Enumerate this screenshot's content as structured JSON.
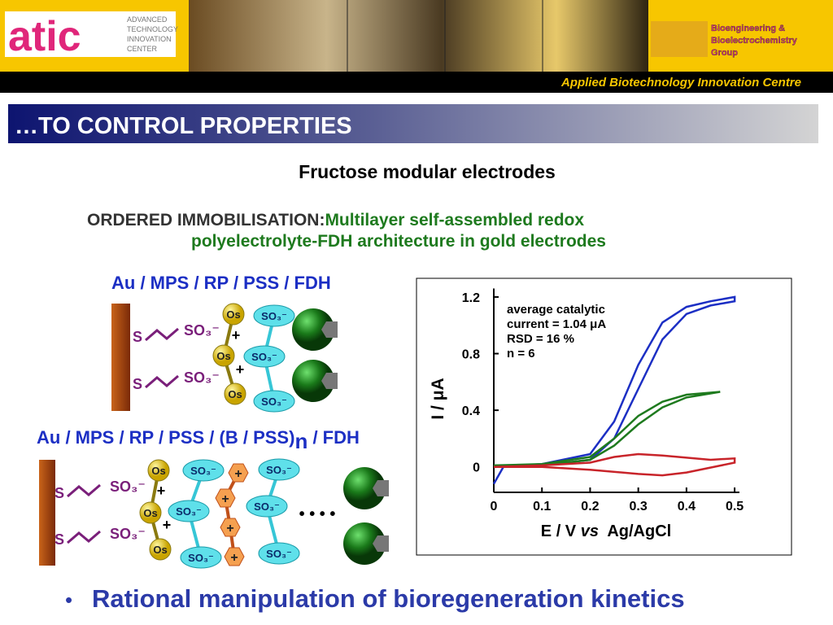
{
  "header": {
    "logo": "atic",
    "logo_text": [
      "ADVANCED",
      "TECHNOLOGY",
      "INNOVATION",
      "CENTER"
    ],
    "group_logo": [
      "Bioengineering &",
      "Bioelectrochemistry",
      "Group"
    ],
    "banner": "Applied Biotechnology Innovation Centre"
  },
  "section_title": "…TO CONTROL PROPERTIES",
  "subtitle": "Fructose modular electrodes",
  "heading": {
    "lead": "ORDERED IMMOBILISATION:",
    "lines": [
      "Multilayer self-assembled redox",
      "polyelectrolyte-FDH architecture in gold electrodes"
    ]
  },
  "diagrams": [
    {
      "label": [
        "Au / MPS / RP / PSS / FDH"
      ],
      "s": [
        "S",
        "S"
      ],
      "so3": [
        "SO₃⁻",
        "SO₃⁻"
      ],
      "os": [
        "Os",
        "Os",
        "Os"
      ],
      "plus": [
        "+",
        "+"
      ],
      "sulfonate": [
        "SO₃⁻",
        "SO₃⁻",
        "SO₃⁻"
      ]
    },
    {
      "label": [
        "Au / MPS / RP / PSS / (B / PSS)",
        "n",
        " / FDH"
      ],
      "s": [
        "S",
        "S"
      ],
      "so3": [
        "SO₃⁻",
        "SO₃⁻"
      ],
      "os": [
        "Os",
        "Os",
        "Os"
      ],
      "plus": [
        "+",
        "+"
      ],
      "sulfonate": [
        "SO₃⁻",
        "SO₃⁻",
        "SO₃⁻",
        "SO₃⁻",
        "SO₃⁻",
        "SO₃⁻"
      ],
      "cation": [
        "+",
        "+",
        "+",
        "+"
      ],
      "ellipsis": "• • • •"
    }
  ],
  "chart_data": {
    "type": "line",
    "ylabel": "I / μA",
    "xlabel": [
      "E / V ",
      "vs",
      "  Ag/AgCl"
    ],
    "annotation": [
      "average catalytic",
      "current = 1.04 μA",
      "RSD = 16 %",
      "n = 6"
    ],
    "xlim": [
      0,
      0.51
    ],
    "ylim": [
      -0.18,
      1.26
    ],
    "xticks": [
      0,
      0.1,
      0.2,
      0.3,
      0.4,
      0.5
    ],
    "yticks": [
      0,
      0.4,
      0.8,
      1.2
    ],
    "series": [
      {
        "color": "#1c2fc4",
        "x": [
          0,
          0.02,
          0.1,
          0.2,
          0.25,
          0.3,
          0.35,
          0.4,
          0.45,
          0.5,
          0.5,
          0.45,
          0.4,
          0.35,
          0.3,
          0.25,
          0.2,
          0.1,
          0
        ],
        "values": [
          -0.12,
          0,
          0.01,
          0.05,
          0.2,
          0.55,
          0.9,
          1.08,
          1.14,
          1.17,
          1.2,
          1.17,
          1.13,
          1.02,
          0.72,
          0.32,
          0.09,
          0.02,
          0
        ]
      },
      {
        "color": "#1e7a1e",
        "x": [
          0,
          0.1,
          0.2,
          0.25,
          0.3,
          0.35,
          0.4,
          0.47,
          0.4,
          0.35,
          0.3,
          0.25,
          0.2,
          0.1,
          0
        ],
        "values": [
          0,
          0.01,
          0.05,
          0.15,
          0.3,
          0.42,
          0.49,
          0.53,
          0.51,
          0.46,
          0.36,
          0.2,
          0.07,
          0.02,
          0.01
        ]
      },
      {
        "color": "#c8242a",
        "x": [
          0,
          0.1,
          0.2,
          0.3,
          0.35,
          0.4,
          0.5,
          0.5,
          0.45,
          0.35,
          0.3,
          0.25,
          0.2,
          0.1,
          0
        ],
        "values": [
          0,
          0,
          -0.02,
          -0.05,
          -0.06,
          -0.04,
          0.03,
          0.06,
          0.05,
          0.08,
          0.09,
          0.07,
          0.03,
          0.01,
          0
        ]
      }
    ]
  },
  "bullets": [
    "Rational manipulation of bioregeneration kinetics"
  ]
}
